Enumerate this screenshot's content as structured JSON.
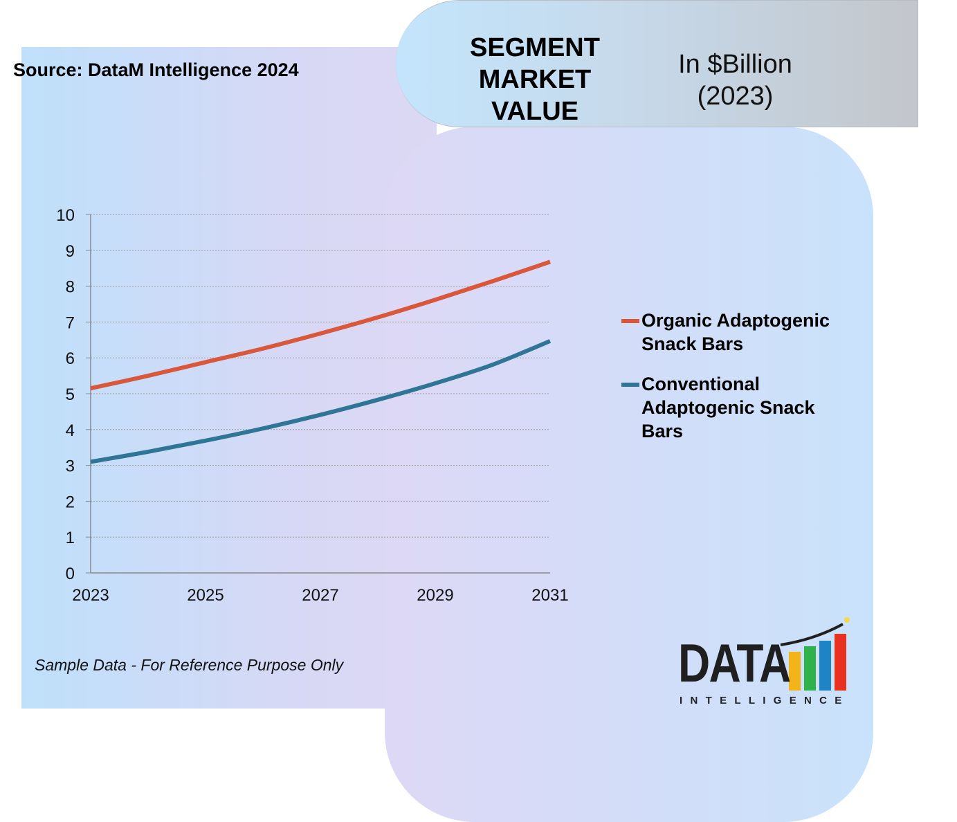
{
  "header": {
    "segment_title": "SEGMENT\nMARKET\nVALUE",
    "unit_label": "In $Billion\n(2023)"
  },
  "source": "Source: DataM Intelligence 2024",
  "note": "Sample Data - For Reference Purpose Only",
  "logo": {
    "word": "DATA",
    "sub": "INTELLIGENCE"
  },
  "colors": {
    "organic": "#d9573b",
    "conventional": "#2f7596",
    "grid": "#999999"
  },
  "chart_data": {
    "type": "line",
    "x": [
      2023,
      2024,
      2025,
      2026,
      2027,
      2028,
      2029,
      2030,
      2031
    ],
    "x_ticks": [
      "2023",
      "2025",
      "2027",
      "2029",
      "2031"
    ],
    "y_ticks": [
      "0",
      "1",
      "2",
      "3",
      "4",
      "5",
      "6",
      "7",
      "8",
      "9",
      "10"
    ],
    "ylim": [
      0,
      10
    ],
    "grid": true,
    "legend": "right",
    "series": [
      {
        "name": "Organic Adaptogenic Snack Bars",
        "color": "#d9573b",
        "values": [
          5.15,
          5.5,
          5.88,
          6.26,
          6.68,
          7.13,
          7.62,
          8.14,
          8.68
        ]
      },
      {
        "name": "Conventional Adaptogenic Snack Bars",
        "color": "#2f7596",
        "values": [
          3.1,
          3.38,
          3.69,
          4.03,
          4.41,
          4.83,
          5.29,
          5.81,
          6.47
        ]
      }
    ]
  }
}
